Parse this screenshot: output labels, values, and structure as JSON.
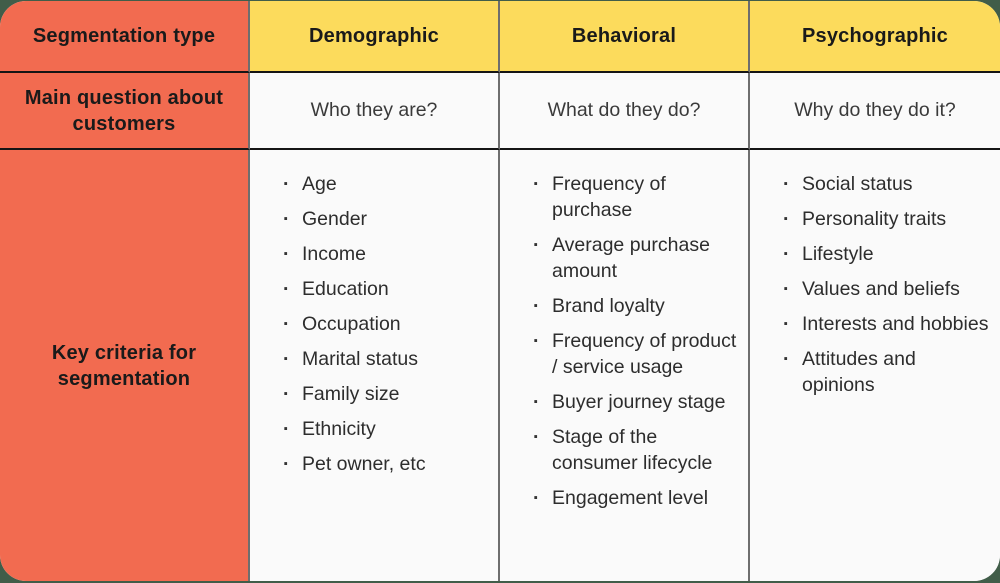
{
  "page": {
    "background_color": "#415D49",
    "card_color": "#FAFAFA",
    "accent_red": "#F26B50",
    "accent_yellow": "#FCDB5C",
    "horizontal_border_color": "#151515",
    "vertical_border_color": "#6E6E6E"
  },
  "table": {
    "row_header": {
      "label": "Segmentation type",
      "columns": [
        "Demographic",
        "Behavioral",
        "Psychographic"
      ]
    },
    "row_question": {
      "label": "Main question about customers",
      "answers": [
        "Who they are?",
        "What do they do?",
        "Why do they do it?"
      ]
    },
    "row_criteria": {
      "label": "Key criteria for segmentation",
      "demographic": [
        "Age",
        "Gender",
        "Income",
        "Education",
        "Occupation",
        "Marital status",
        "Family size",
        "Ethnicity",
        "Pet owner, etc"
      ],
      "behavioral": [
        "Frequency of purchase",
        "Average purchase amount",
        "Brand loyalty",
        "Frequency of product / service usage",
        "Buyer journey stage",
        "Stage of the consumer lifecycle",
        "Engagement level"
      ],
      "psychographic": [
        "Social status",
        "Personality traits",
        "Lifestyle",
        "Values and beliefs",
        "Interests and hobbies",
        "Attitudes and opinions"
      ]
    }
  }
}
